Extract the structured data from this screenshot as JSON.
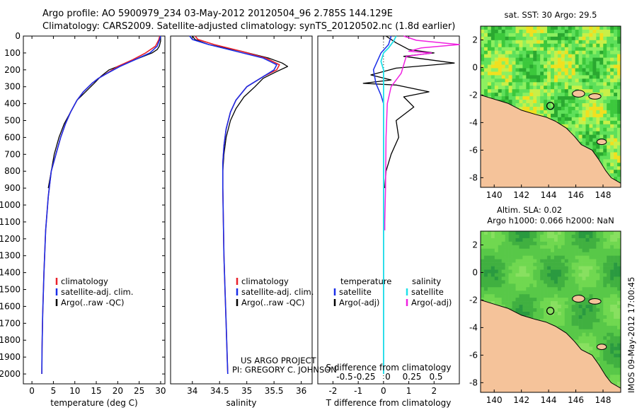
{
  "title_line1": "Argo profile: AO 5900979_234 03-May-2012 20120504_96 2.785S 144.129E",
  "title_line2": "Climatology: CARS2009. Satellite-adjusted climatology: synTS_20120502.nc (1.8d earlier)",
  "footer_project": "US ARGO PROJECT",
  "footer_pi": "PI: GREGORY C. JOHNSON",
  "credit": "IMOS 09-May-2012 17:00:45",
  "colors": {
    "climatology": "#e8202a",
    "satellite": "#1a2ee8",
    "argo": "#000000",
    "sal_satellite": "#20e0e8",
    "sal_argo": "#f020e0",
    "land": "#f5c39a"
  },
  "chart_data": [
    {
      "type": "line",
      "name_key": "temperature_profile",
      "xlabel": "temperature (deg C)",
      "ylabel": "",
      "xlim": [
        -2,
        31
      ],
      "ylim": [
        2050,
        0
      ],
      "xticks": [
        0,
        5,
        10,
        15,
        20,
        25,
        30
      ],
      "yticks": [
        0,
        100,
        200,
        300,
        400,
        500,
        600,
        700,
        800,
        900,
        1000,
        1100,
        1200,
        1300,
        1400,
        1500,
        1600,
        1700,
        1800,
        1900,
        2000
      ],
      "legend": [
        "climatology",
        "satellite-adj. clim.",
        "Argo(..raw -QC)"
      ],
      "series": [
        {
          "name": "climatology",
          "x": [
            29.8,
            29.6,
            28.8,
            26.5,
            23.5,
            20,
            17.5,
            15.5,
            14,
            12,
            10.5,
            9,
            7.8,
            6.7,
            5.8,
            4.5,
            3.8,
            3.2,
            2.8,
            2.5,
            2.35,
            2.3
          ],
          "y": [
            0,
            20,
            60,
            100,
            140,
            180,
            220,
            250,
            280,
            330,
            380,
            450,
            520,
            600,
            680,
            800,
            950,
            1150,
            1400,
            1650,
            1850,
            2000
          ]
        },
        {
          "name": "satellite-adj. clim.",
          "x": [
            30,
            29.8,
            29.2,
            27.5,
            24,
            20.5,
            17.6,
            15.5,
            14,
            12,
            10.5,
            9,
            7.8,
            6.7,
            5.8,
            4.5,
            3.8,
            3.2,
            2.8,
            2.5,
            2.35,
            2.3
          ],
          "y": [
            0,
            20,
            60,
            100,
            140,
            180,
            220,
            250,
            280,
            330,
            380,
            450,
            520,
            600,
            680,
            800,
            950,
            1150,
            1400,
            1650,
            1850,
            2000
          ]
        },
        {
          "name": "Argo(..raw -QC)",
          "x": [
            30,
            30,
            29.7,
            29.2,
            28,
            24,
            21,
            18,
            16,
            14.5,
            12.5,
            10.5,
            9,
            7.5,
            6.3,
            5.2,
            4.5,
            3.8
          ],
          "y": [
            0,
            30,
            60,
            80,
            100,
            140,
            170,
            200,
            240,
            280,
            330,
            380,
            450,
            520,
            600,
            700,
            800,
            900
          ]
        }
      ]
    },
    {
      "type": "line",
      "name_key": "salinity_profile",
      "xlabel": "salinity",
      "ylabel": "",
      "xlim": [
        33.6,
        36.2
      ],
      "ylim": [
        2050,
        0
      ],
      "xticks": [
        34,
        34.5,
        35,
        35.5,
        36
      ],
      "legend": [
        "climatology",
        "satellite-adj. clim.",
        "Argo(..raw -QC)"
      ],
      "series": [
        {
          "name": "climatology",
          "x": [
            34.05,
            34.1,
            34.4,
            34.9,
            35.35,
            35.6,
            35.55,
            35.3,
            35.0,
            34.8,
            34.7,
            34.62,
            34.58,
            34.56,
            34.56,
            34.57,
            34.58,
            34.6,
            34.62,
            34.64,
            34.65
          ],
          "y": [
            0,
            20,
            50,
            90,
            130,
            170,
            200,
            240,
            300,
            380,
            450,
            550,
            650,
            750,
            900,
            1100,
            1300,
            1500,
            1700,
            1900,
            2000
          ]
        },
        {
          "name": "satellite-adj. clim.",
          "x": [
            33.95,
            34.0,
            34.3,
            34.8,
            35.3,
            35.55,
            35.5,
            35.3,
            35.0,
            34.8,
            34.7,
            34.62,
            34.58,
            34.56,
            34.56,
            34.57,
            34.58,
            34.6,
            34.62,
            34.64,
            34.65
          ],
          "y": [
            0,
            20,
            50,
            90,
            130,
            170,
            200,
            240,
            300,
            380,
            450,
            550,
            650,
            750,
            900,
            1100,
            1300,
            1500,
            1700,
            1900,
            2000
          ]
        },
        {
          "name": "Argo(..raw -QC)",
          "x": [
            34.0,
            34.05,
            34.3,
            34.9,
            35.4,
            35.65,
            35.75,
            35.55,
            35.3,
            35.15,
            34.95,
            34.8,
            34.7,
            34.62,
            34.58,
            34.56
          ],
          "y": [
            0,
            20,
            50,
            90,
            130,
            160,
            180,
            210,
            250,
            300,
            360,
            430,
            500,
            600,
            700,
            800
          ]
        }
      ]
    },
    {
      "type": "line",
      "name_key": "difference_profile",
      "xlabel": "T difference from climatology",
      "xlabel2": "S difference from climatology",
      "xlim": [
        -2.6,
        3
      ],
      "ylim": [
        2050,
        0
      ],
      "xticks": [
        -2,
        -1,
        0,
        1,
        2
      ],
      "xticks2": [
        "-0.5",
        "-0.25",
        "0",
        "0.25",
        "0.5"
      ],
      "legend_headers": [
        "temperature",
        "salinity"
      ],
      "legend": [
        "satellite",
        "Argo(-adj)",
        "satellite",
        "Argo(-adj)"
      ],
      "series": [
        {
          "name": "temperature satellite",
          "x": [
            0.3,
            0.2,
            -0.1,
            -0.4,
            -0.3,
            -0.1,
            0,
            0,
            0,
            0
          ],
          "y": [
            0,
            50,
            100,
            200,
            280,
            350,
            400,
            600,
            1200,
            2000
          ]
        },
        {
          "name": "temperature Argo(-adj)",
          "x": [
            0.1,
            0.5,
            1.0,
            2.0,
            0.8,
            2.8,
            0.5,
            -0.5,
            0.3,
            -0.8,
            0.5,
            1.8,
            0.8,
            1.2,
            0.5,
            0.6,
            0.3,
            0.1,
            0.05
          ],
          "y": [
            0,
            40,
            80,
            100,
            120,
            160,
            190,
            230,
            260,
            280,
            290,
            330,
            360,
            420,
            500,
            600,
            700,
            800,
            900
          ]
        },
        {
          "name": "salinity satellite",
          "x": [
            0.5,
            0.4,
            0.2,
            0,
            -0.1,
            0,
            0,
            0,
            0
          ],
          "y": [
            0,
            30,
            70,
            100,
            150,
            200,
            400,
            1000,
            2000
          ]
        },
        {
          "name": "salinity Argo(-adj)",
          "x": [
            0.8,
            1.3,
            3.0,
            1.5,
            1.0,
            1.9,
            0.9,
            0.8,
            0.7,
            0.3,
            0.15,
            0.1,
            0.08,
            0.05,
            0.05
          ],
          "y": [
            0,
            25,
            50,
            70,
            90,
            100,
            120,
            170,
            220,
            300,
            400,
            600,
            900,
            1100,
            1150
          ]
        }
      ]
    },
    {
      "type": "heatmap",
      "name_key": "sst_map",
      "title": "sat. SST: 30 Argo: 29.5",
      "xlim": [
        139,
        149.3
      ],
      "ylim": [
        -8.7,
        3
      ],
      "xticks": [
        140,
        142,
        144,
        146,
        148
      ],
      "yticks": [
        2,
        0,
        -2,
        -4,
        -6,
        -8
      ],
      "float_position": [
        144.129,
        -2.785
      ]
    },
    {
      "type": "heatmap",
      "name_key": "sla_map",
      "title": "Altim. SLA: 0.02",
      "subtitle": "Argo h1000: 0.066 h2000: NaN",
      "xlim": [
        139,
        149.3
      ],
      "ylim": [
        -8.7,
        3
      ],
      "xticks": [
        140,
        142,
        144,
        146,
        148
      ],
      "yticks": [
        2,
        0,
        -2,
        -4,
        -6,
        -8
      ],
      "float_position": [
        144.129,
        -2.785
      ]
    }
  ]
}
